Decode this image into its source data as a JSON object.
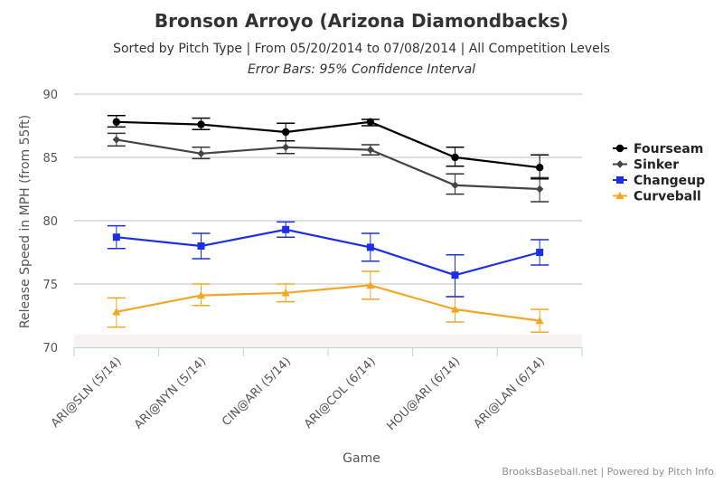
{
  "chart_data": {
    "type": "line",
    "title": "Bronson Arroyo (Arizona Diamondbacks)",
    "subtitle": "Sorted by Pitch Type | From 05/20/2014 to 07/08/2014 | All Competition Levels",
    "subtitle2": "Error Bars: 95% Confidence Interval",
    "xlabel": "Game",
    "ylabel": "Release Speed in MPH (from 55ft)",
    "ylim": [
      70,
      90
    ],
    "yticks": [
      "70",
      "75",
      "80",
      "85",
      "90"
    ],
    "categories": [
      "ARI@SLN (5/14)",
      "ARI@NYN (5/14)",
      "CIN@ARI (5/14)",
      "ARI@COL (6/14)",
      "HOU@ARI (6/14)",
      "ARI@LAN (6/14)"
    ],
    "grid": true,
    "legend_position": "right",
    "credits": "BrooksBaseball.net | Powered by Pitch Info",
    "series": [
      {
        "name": "Fourseam",
        "color": "#000000",
        "marker": "circle",
        "values": [
          87.8,
          87.6,
          87.0,
          87.8,
          85.0,
          84.2
        ],
        "error_low": [
          87.4,
          87.2,
          86.3,
          87.5,
          84.3,
          83.3
        ],
        "error_high": [
          88.3,
          88.1,
          87.7,
          88.0,
          85.8,
          85.2
        ]
      },
      {
        "name": "Sinker",
        "color": "#444444",
        "marker": "diamond",
        "values": [
          86.4,
          85.3,
          85.8,
          85.6,
          82.8,
          82.5
        ],
        "error_low": [
          85.9,
          84.9,
          85.3,
          85.2,
          82.1,
          81.5
        ],
        "error_high": [
          86.9,
          85.8,
          86.3,
          86.0,
          83.7,
          83.4
        ]
      },
      {
        "name": "Changeup",
        "color": "#1b2fe6",
        "marker": "square",
        "values": [
          78.7,
          78.0,
          79.3,
          77.9,
          75.7,
          77.5
        ],
        "error_low": [
          77.8,
          77.0,
          78.7,
          76.8,
          74.0,
          76.5
        ],
        "error_high": [
          79.6,
          79.0,
          79.9,
          79.0,
          77.3,
          78.5
        ]
      },
      {
        "name": "Curveball",
        "color": "#f5a623",
        "marker": "triangle",
        "values": [
          72.8,
          74.1,
          74.3,
          74.9,
          73.0,
          72.1
        ],
        "error_low": [
          71.6,
          73.3,
          73.6,
          73.8,
          72.0,
          71.2
        ],
        "error_high": [
          73.9,
          75.0,
          75.0,
          76.0,
          74.0,
          73.0
        ]
      }
    ]
  }
}
